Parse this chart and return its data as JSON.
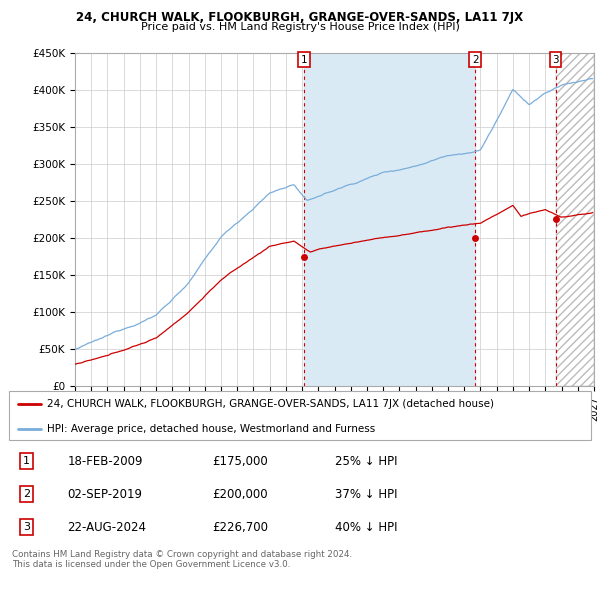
{
  "title": "24, CHURCH WALK, FLOOKBURGH, GRANGE-OVER-SANDS, LA11 7JX",
  "subtitle": "Price paid vs. HM Land Registry's House Price Index (HPI)",
  "ylim": [
    0,
    450000
  ],
  "yticks": [
    0,
    50000,
    100000,
    150000,
    200000,
    250000,
    300000,
    350000,
    400000,
    450000
  ],
  "ytick_labels": [
    "£0",
    "£50K",
    "£100K",
    "£150K",
    "£200K",
    "£250K",
    "£300K",
    "£350K",
    "£400K",
    "£450K"
  ],
  "xlim_start": 1995.0,
  "xlim_end": 2027.0,
  "hpi_color": "#7aaddb",
  "price_color": "#cc0000",
  "vline_color": "#cc0000",
  "fill_color": "#daeaf5",
  "background_color": "#ffffff",
  "grid_color": "#cccccc",
  "legend_label_price": "24, CHURCH WALK, FLOOKBURGH, GRANGE-OVER-SANDS, LA11 7JX (detached house)",
  "legend_label_hpi": "HPI: Average price, detached house, Westmorland and Furness",
  "transactions": [
    {
      "num": 1,
      "date": "18-FEB-2009",
      "price": 175000,
      "pct": "25% ↓ HPI",
      "year": 2009.12
    },
    {
      "num": 2,
      "date": "02-SEP-2019",
      "price": 200000,
      "pct": "37% ↓ HPI",
      "year": 2019.67
    },
    {
      "num": 3,
      "date": "22-AUG-2024",
      "price": 226700,
      "pct": "40% ↓ HPI",
      "year": 2024.63
    }
  ],
  "footnote": "Contains HM Land Registry data © Crown copyright and database right 2024.\nThis data is licensed under the Open Government Licence v3.0.",
  "hatch_start": 2024.63,
  "hatch_end": 2027.0
}
